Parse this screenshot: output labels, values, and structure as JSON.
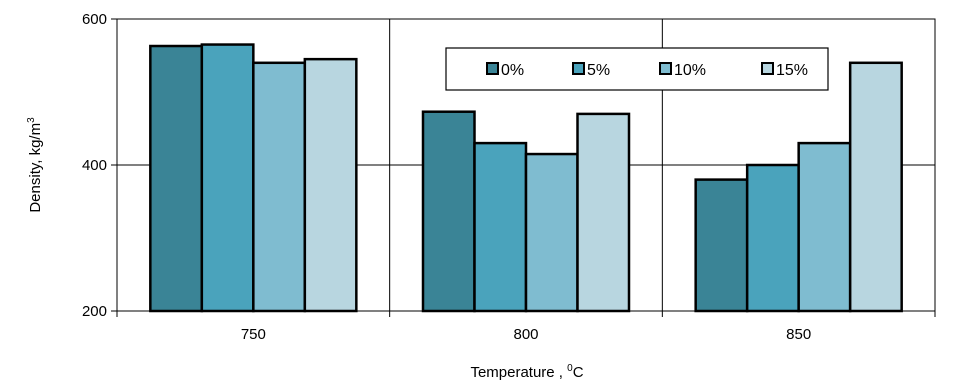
{
  "chart_data": {
    "type": "bar",
    "categories": [
      "750",
      "800",
      "850"
    ],
    "series": [
      {
        "name": "0%",
        "values": [
          563,
          473,
          380
        ],
        "color": "#3a8496"
      },
      {
        "name": "5%",
        "values": [
          565,
          430,
          400
        ],
        "color": "#4aa3bc"
      },
      {
        "name": "10%",
        "values": [
          540,
          415,
          430
        ],
        "color": "#7fbcd0"
      },
      {
        "name": "15%",
        "values": [
          545,
          470,
          540
        ],
        "color": "#b8d6e0"
      }
    ],
    "ylim": [
      200,
      600
    ],
    "yticks": [
      "200",
      "400",
      "600"
    ],
    "ylabel_main": "Density, kg/m",
    "ylabel_sup": "3",
    "xlabel_main": "Temperature , ",
    "xlabel_sup": "0",
    "xlabel_end": "C",
    "grid": true,
    "legend": "top-right"
  }
}
